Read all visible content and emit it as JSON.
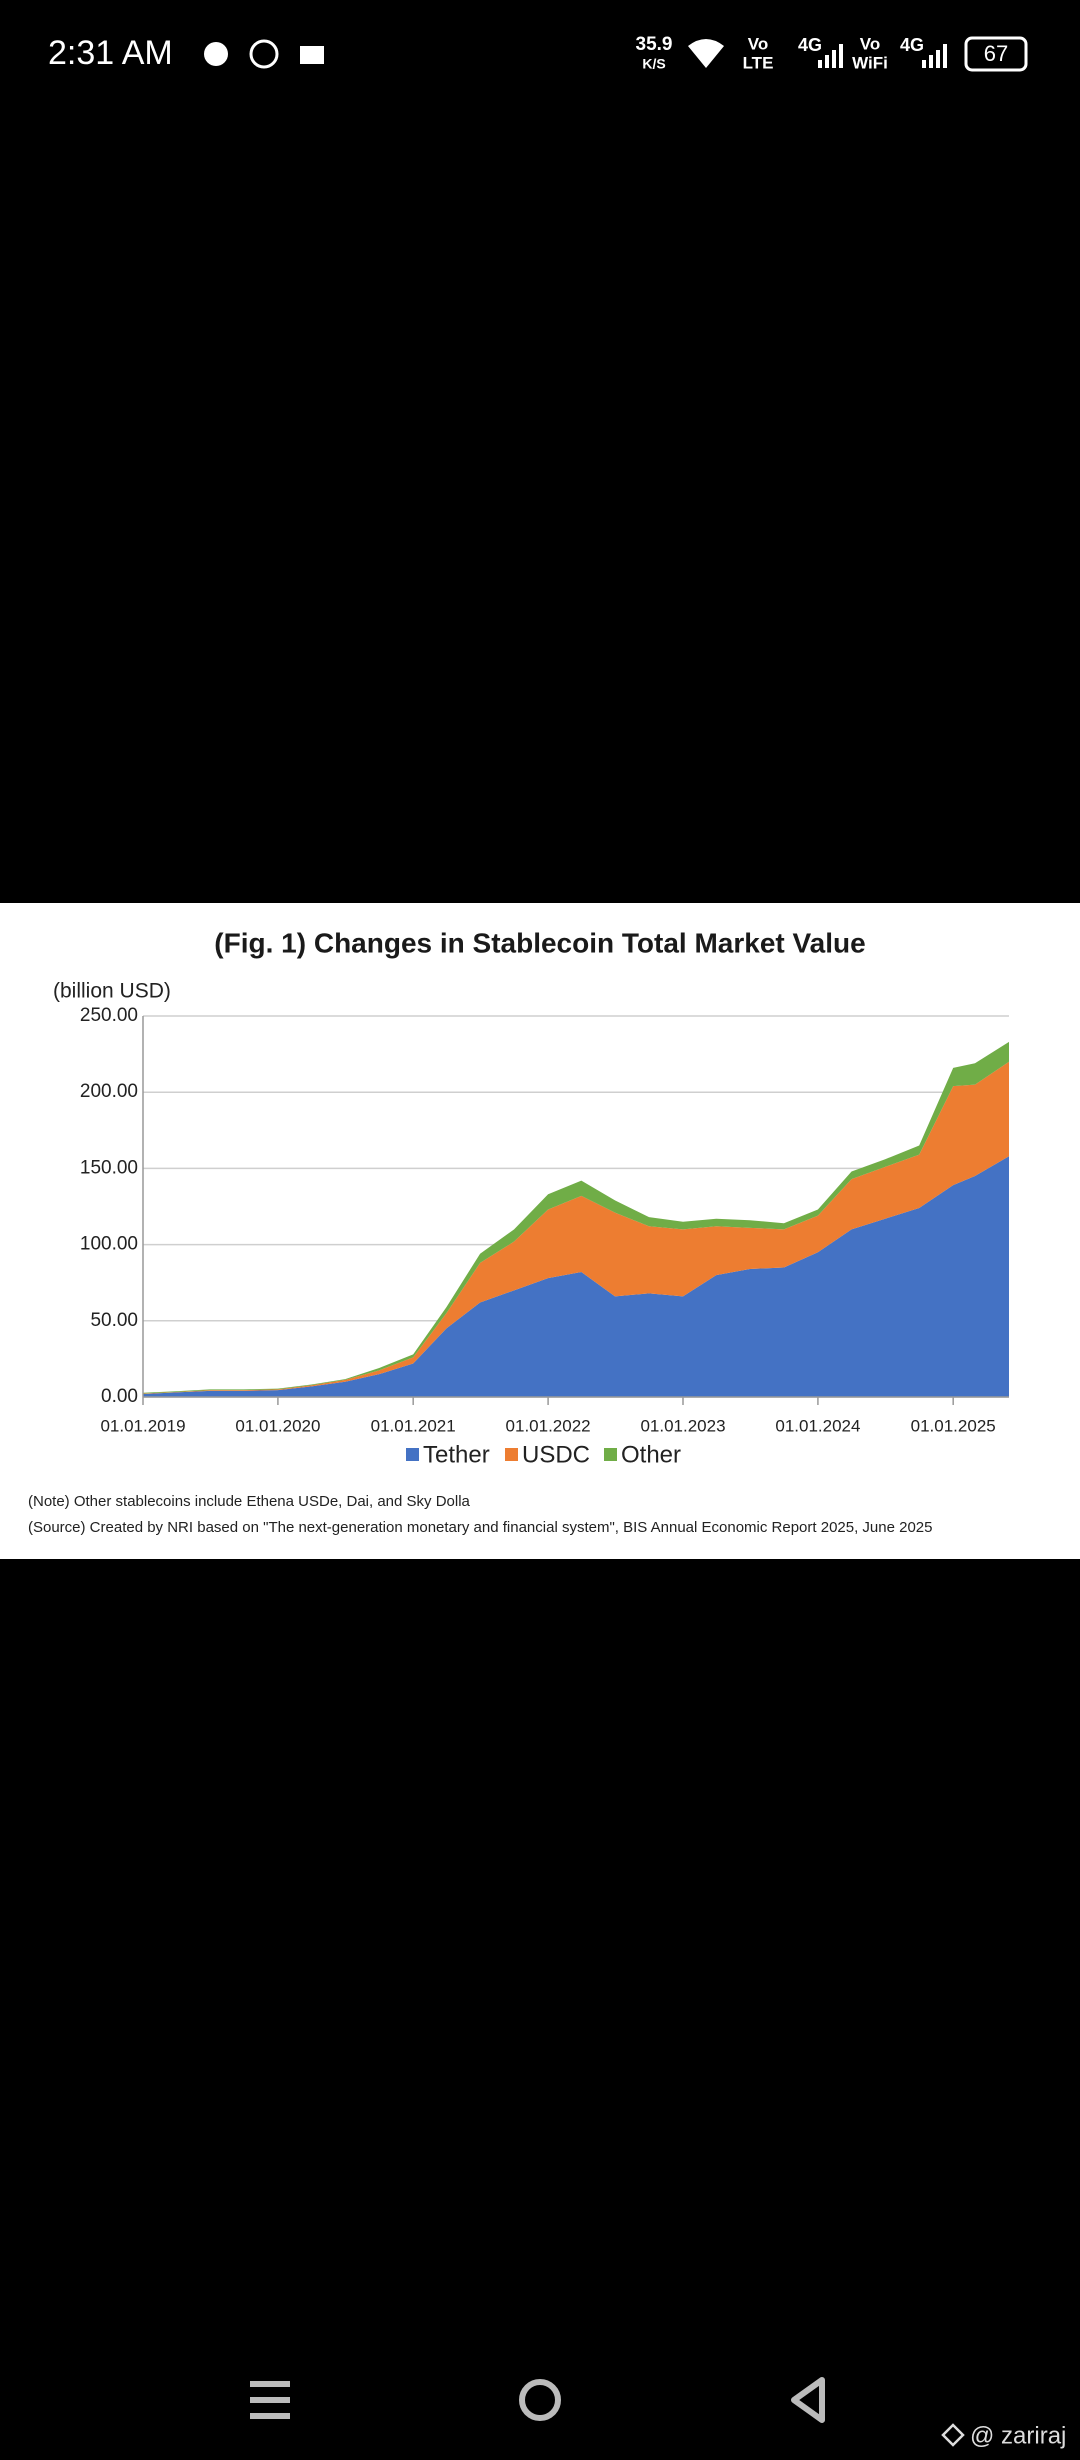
{
  "status_bar": {
    "time": "2:31 AM",
    "speed": "35.9",
    "speed_unit": "K/S",
    "vo1": "Vo",
    "lte": "LTE",
    "net1": "4G",
    "vo2": "Vo",
    "wifi": "WiFi",
    "net2": "4G",
    "battery": "67"
  },
  "chart_data": {
    "type": "stacked-area",
    "title": "(Fig. 1) Changes in Stablecoin Total Market Value",
    "y_label": "(billion USD)",
    "x": [
      "2019-01-01",
      "2019-04-01",
      "2019-07-01",
      "2019-10-01",
      "2020-01-01",
      "2020-04-01",
      "2020-07-01",
      "2020-10-01",
      "2021-01-01",
      "2021-04-01",
      "2021-07-01",
      "2021-10-01",
      "2022-01-01",
      "2022-04-01",
      "2022-07-01",
      "2022-10-01",
      "2023-01-01",
      "2023-04-01",
      "2023-07-01",
      "2023-10-01",
      "2024-01-01",
      "2024-04-01",
      "2024-07-01",
      "2024-10-01",
      "2025-01-01",
      "2025-03-01",
      "2025-06-01"
    ],
    "series": [
      {
        "name": "Tether",
        "color": "#4472c4",
        "values": [
          2,
          3,
          4,
          4,
          4.5,
          7,
          10,
          15,
          22,
          45,
          62,
          70,
          78,
          82,
          66,
          68,
          66,
          80,
          84,
          85,
          95,
          110,
          117,
          124,
          139,
          145,
          158
        ]
      },
      {
        "name": "USDC",
        "color": "#ed7d31",
        "values": [
          0.3,
          0.3,
          0.5,
          0.5,
          0.5,
          0.7,
          1.2,
          2.5,
          4,
          10,
          26,
          32,
          45,
          50,
          55,
          44,
          44,
          32,
          27,
          25,
          24,
          33,
          34,
          35,
          65,
          60,
          62
        ]
      },
      {
        "name": "Other",
        "color": "#70ad47",
        "values": [
          0.5,
          0.5,
          0.5,
          0.5,
          0.5,
          0.5,
          0.5,
          1.5,
          2,
          4,
          6,
          8,
          10,
          10,
          8,
          6,
          5,
          5,
          5,
          4,
          4,
          5,
          5,
          6,
          12,
          14,
          13
        ]
      }
    ],
    "xlim": [
      "2019-01-01",
      "2025-06-01"
    ],
    "xticks": [
      {
        "value": "2019-01-01",
        "label": "01.01.2019"
      },
      {
        "value": "2020-01-01",
        "label": "01.01.2020"
      },
      {
        "value": "2021-01-01",
        "label": "01.01.2021"
      },
      {
        "value": "2022-01-01",
        "label": "01.01.2022"
      },
      {
        "value": "2023-01-01",
        "label": "01.01.2023"
      },
      {
        "value": "2024-01-01",
        "label": "01.01.2024"
      },
      {
        "value": "2025-01-01",
        "label": "01.01.2025"
      }
    ],
    "ylim": [
      0,
      250
    ],
    "yticks": [
      {
        "value": 0,
        "label": "0.00"
      },
      {
        "value": 50,
        "label": "50.00"
      },
      {
        "value": 100,
        "label": "100.00"
      },
      {
        "value": 150,
        "label": "150.00"
      },
      {
        "value": 200,
        "label": "200.00"
      },
      {
        "value": 250,
        "label": "250.00"
      }
    ],
    "grid": true,
    "notes": [
      "(Note) Other stablecoins include Ethena USDe, Dai, and Sky Dolla",
      "(Source) Created by NRI based on \"The next-generation monetary and financial system\", BIS Annual Economic Report 2025, June 2025"
    ]
  },
  "watermark": "@ zariraj"
}
